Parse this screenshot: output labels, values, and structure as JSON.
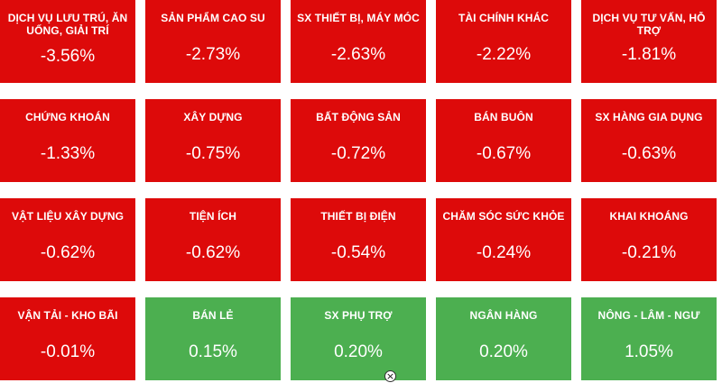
{
  "tiles": [
    {
      "name": "DỊCH VỤ LƯU TRÚ, ĂN UỐNG, GIẢI TRÍ",
      "value": "-3.56%",
      "status": "down"
    },
    {
      "name": "SẢN PHẨM CAO SU",
      "value": "-2.73%",
      "status": "down"
    },
    {
      "name": "SX THIẾT BỊ, MÁY MÓC",
      "value": "-2.63%",
      "status": "down"
    },
    {
      "name": "TÀI CHÍNH KHÁC",
      "value": "-2.22%",
      "status": "down"
    },
    {
      "name": "DỊCH VỤ TƯ VẤN, HỖ TRỢ",
      "value": "-1.81%",
      "status": "down"
    },
    {
      "name": "CHỨNG KHOÁN",
      "value": "-1.33%",
      "status": "down"
    },
    {
      "name": "XÂY DỰNG",
      "value": "-0.75%",
      "status": "down"
    },
    {
      "name": "BẤT ĐỘNG SẢN",
      "value": "-0.72%",
      "status": "down"
    },
    {
      "name": "BÁN BUÔN",
      "value": "-0.67%",
      "status": "down"
    },
    {
      "name": "SX HÀNG GIA DỤNG",
      "value": "-0.63%",
      "status": "down"
    },
    {
      "name": "VẬT LIỆU XÂY DỰNG",
      "value": "-0.62%",
      "status": "down"
    },
    {
      "name": "TIỆN ÍCH",
      "value": "-0.62%",
      "status": "down"
    },
    {
      "name": "THIẾT BỊ ĐIỆN",
      "value": "-0.54%",
      "status": "down"
    },
    {
      "name": "CHĂM SÓC SỨC KHỎE",
      "value": "-0.24%",
      "status": "down"
    },
    {
      "name": "KHAI KHOÁNG",
      "value": "-0.21%",
      "status": "down"
    },
    {
      "name": "VẬN TẢI - KHO BÃI",
      "value": "-0.01%",
      "status": "down"
    },
    {
      "name": "BÁN LẺ",
      "value": "0.15%",
      "status": "up"
    },
    {
      "name": "SX PHỤ TRỢ",
      "value": "0.20%",
      "status": "up"
    },
    {
      "name": "NGÂN HÀNG",
      "value": "0.20%",
      "status": "up"
    },
    {
      "name": "NÔNG - LÂM - NGƯ",
      "value": "1.05%",
      "status": "up"
    }
  ],
  "colors": {
    "down": "#dd0a0a",
    "up": "#4caf50"
  },
  "close_icon": "×"
}
